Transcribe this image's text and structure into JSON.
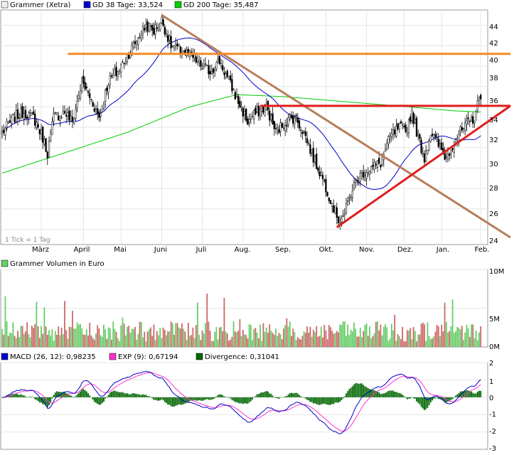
{
  "chart_data": [
    {
      "type": "candlestick",
      "legend": [
        {
          "label": "Grammer (Xetra)",
          "color": "#f0f0f0"
        },
        {
          "label": "GD 38 Tage: 33,524",
          "color": "#0000cc"
        },
        {
          "label": "GD 200 Tage: 35,487",
          "color": "#00cc00"
        }
      ],
      "y_ticks": [
        "44",
        "42",
        "40",
        "38",
        "36",
        "34",
        "32",
        "30",
        "28",
        "26",
        "24"
      ],
      "ylim": [
        22.5,
        45.5
      ],
      "x_ticks": [
        "März",
        "April",
        "Mai",
        "Juni",
        "Juli",
        "Aug.",
        "Sep.",
        "Okt.",
        "Nov.",
        "Dez.",
        "Jan.",
        "Feb."
      ],
      "note": "1 Tick = 1 Tag",
      "price_anchors": [
        {
          "d": 0,
          "p": 33.5
        },
        {
          "d": 8,
          "p": 35.0
        },
        {
          "d": 14,
          "p": 35.5
        },
        {
          "d": 20,
          "p": 35.0
        },
        {
          "d": 26,
          "p": 33.0
        },
        {
          "d": 29,
          "p": 31.5
        },
        {
          "d": 33,
          "p": 35.0
        },
        {
          "d": 40,
          "p": 35.5
        },
        {
          "d": 45,
          "p": 34.5
        },
        {
          "d": 51,
          "p": 38.5
        },
        {
          "d": 56,
          "p": 37.0
        },
        {
          "d": 62,
          "p": 35.0
        },
        {
          "d": 68,
          "p": 38.5
        },
        {
          "d": 74,
          "p": 39.5
        },
        {
          "d": 80,
          "p": 41.0
        },
        {
          "d": 86,
          "p": 42.5
        },
        {
          "d": 92,
          "p": 44.0
        },
        {
          "d": 97,
          "p": 43.5
        },
        {
          "d": 102,
          "p": 44.5
        },
        {
          "d": 108,
          "p": 42.0
        },
        {
          "d": 115,
          "p": 41.5
        },
        {
          "d": 121,
          "p": 41.0
        },
        {
          "d": 127,
          "p": 40.0
        },
        {
          "d": 133,
          "p": 39.5
        },
        {
          "d": 139,
          "p": 40.5
        },
        {
          "d": 145,
          "p": 38.5
        },
        {
          "d": 151,
          "p": 36.5
        },
        {
          "d": 157,
          "p": 34.5
        },
        {
          "d": 163,
          "p": 35.5
        },
        {
          "d": 169,
          "p": 36.0
        },
        {
          "d": 175,
          "p": 33.5
        },
        {
          "d": 181,
          "p": 34.5
        },
        {
          "d": 187,
          "p": 35.0
        },
        {
          "d": 193,
          "p": 33.5
        },
        {
          "d": 199,
          "p": 31.0
        },
        {
          "d": 205,
          "p": 29.0
        },
        {
          "d": 211,
          "p": 26.5
        },
        {
          "d": 215,
          "p": 25.0
        },
        {
          "d": 219,
          "p": 25.5
        },
        {
          "d": 224,
          "p": 28.0
        },
        {
          "d": 230,
          "p": 29.5
        },
        {
          "d": 236,
          "p": 30.0
        },
        {
          "d": 242,
          "p": 30.5
        },
        {
          "d": 248,
          "p": 33.0
        },
        {
          "d": 254,
          "p": 34.0
        },
        {
          "d": 258,
          "p": 33.5
        },
        {
          "d": 262,
          "p": 35.5
        },
        {
          "d": 266,
          "p": 33.0
        },
        {
          "d": 270,
          "p": 31.0
        },
        {
          "d": 274,
          "p": 33.5
        },
        {
          "d": 280,
          "p": 32.0
        },
        {
          "d": 284,
          "p": 31.0
        },
        {
          "d": 290,
          "p": 33.0
        },
        {
          "d": 296,
          "p": 34.0
        },
        {
          "d": 302,
          "p": 35.0
        },
        {
          "d": 306,
          "p": 37.3
        }
      ],
      "ma200_anchors": [
        {
          "d": 0,
          "p": 29.5
        },
        {
          "d": 40,
          "p": 31.5
        },
        {
          "d": 80,
          "p": 33.5
        },
        {
          "d": 120,
          "p": 36.0
        },
        {
          "d": 150,
          "p": 37.2
        },
        {
          "d": 180,
          "p": 37.0
        },
        {
          "d": 220,
          "p": 36.5
        },
        {
          "d": 260,
          "p": 36.0
        },
        {
          "d": 290,
          "p": 35.6
        },
        {
          "d": 306,
          "p": 35.5
        }
      ],
      "trend_lines": [
        {
          "name": "downtrend",
          "color": "#b87d5a",
          "points": [
            {
              "d": 102,
              "p": 45.0
            },
            {
              "d": 325,
              "p": 23.2
            }
          ]
        },
        {
          "name": "resistance-1",
          "color": "#f28b26",
          "points": [
            {
              "d": 42,
              "p": 41.2
            },
            {
              "d": 325,
              "p": 41.2
            }
          ]
        },
        {
          "name": "resistance-2",
          "color": "#e21c1c",
          "points": [
            {
              "d": 165,
              "p": 36.1
            },
            {
              "d": 325,
              "p": 36.1
            }
          ]
        },
        {
          "name": "support",
          "color": "#e21c1c",
          "points": [
            {
              "d": 214,
              "p": 24.2
            },
            {
              "d": 325,
              "p": 36.1
            }
          ]
        }
      ]
    },
    {
      "type": "bar",
      "legend": [
        {
          "label": "Grammer Volumen in Euro",
          "color": "#66cc66"
        }
      ],
      "y_ticks": [
        "10M",
        "5M",
        "0M"
      ],
      "ylim": [
        0,
        10
      ],
      "unit": "M",
      "colors": {
        "up": "#66cc66",
        "down": "#cc6666"
      }
    },
    {
      "type": "line",
      "legend": [
        {
          "label": "MACD (26, 12): 0,98235",
          "color": "#0000cc"
        },
        {
          "label": "EXP (9): 0,67194",
          "color": "#ff33cc"
        },
        {
          "label": "Divergence: 0,31041",
          "color": "#006600"
        }
      ],
      "y_ticks": [
        "2",
        "1",
        "0",
        "-1",
        "-2",
        "-3"
      ],
      "ylim": [
        -3,
        2
      ],
      "colors": {
        "histogram": "#006600"
      }
    }
  ]
}
